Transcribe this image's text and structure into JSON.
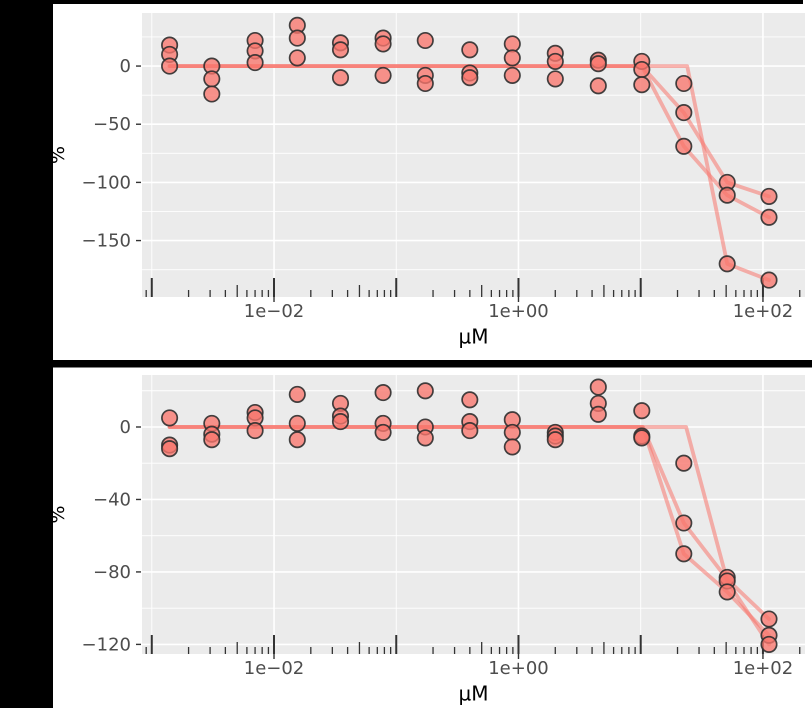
{
  "figure": {
    "description": "Two stacked dose-response plots, percent response vs concentration (log scale), three replicate series per plot",
    "x_axis_title": "µM",
    "y_axis_title": "%"
  },
  "palette": {
    "frame": "#000000",
    "plot_background": "#ffffff",
    "panel_bg": "#ebebeb",
    "grid": "#ffffff",
    "series_color": "#F8766D",
    "point_stroke": "#2f2f2f",
    "tick_label": "#4d4d4d",
    "axis_title": "#000000",
    "tick_mark": "#333333"
  },
  "chart_data": [
    {
      "id": "top",
      "type": "scatter",
      "title": "",
      "xlabel": "µM",
      "ylabel": "%",
      "x_scale": "log10",
      "xlim_log10": [
        -3.08,
        2.344
      ],
      "ylim": [
        -198.5,
        45.6
      ],
      "grid": true,
      "legend": "none",
      "x_breaks": [
        {
          "value": 0.01,
          "label": "1e−02"
        },
        {
          "value": 1,
          "label": "1e+00"
        },
        {
          "value": 100,
          "label": "1e+02"
        }
      ],
      "x_grid_decades": [
        -3,
        -2,
        -1,
        0,
        1,
        2
      ],
      "y_breaks": [
        {
          "value": 0,
          "label": "0"
        },
        {
          "value": -50,
          "label": "−50"
        },
        {
          "value": -100,
          "label": "−100"
        },
        {
          "value": -150,
          "label": "−150"
        }
      ],
      "y_minor": [
        25,
        -25,
        -75,
        -125,
        -175
      ],
      "doses_uM": [
        0.0014,
        0.0031,
        0.007,
        0.0155,
        0.035,
        0.078,
        0.173,
        0.4,
        0.89,
        2.0,
        4.5,
        10.2,
        22.5,
        51,
        112
      ],
      "responses_pct": [
        [
          18,
          10,
          0
        ],
        [
          0,
          -11,
          -24
        ],
        [
          22,
          13,
          3
        ],
        [
          35,
          24,
          7
        ],
        [
          20,
          14,
          -10
        ],
        [
          24,
          19,
          -8
        ],
        [
          22,
          -8,
          -15
        ],
        [
          14,
          -6,
          -10
        ],
        [
          19,
          7,
          -8
        ],
        [
          11,
          4,
          -11
        ],
        [
          5,
          2,
          -17
        ],
        [
          4,
          -3,
          -16
        ],
        [
          -15,
          -40,
          -69
        ],
        [
          -100,
          -111,
          -170
        ],
        [
          -112,
          -130,
          -184
        ]
      ],
      "fit_lines": [
        [
          [
            0.0014,
            0
          ],
          [
            10.2,
            0
          ],
          [
            22.5,
            -40
          ],
          [
            51,
            -100
          ],
          [
            112,
            -112
          ]
        ],
        [
          [
            0.0014,
            0
          ],
          [
            10.2,
            0
          ],
          [
            22.5,
            -69
          ],
          [
            51,
            -111
          ],
          [
            112,
            -130
          ]
        ],
        [
          [
            0.0014,
            0
          ],
          [
            24.0,
            0
          ],
          [
            51,
            -170
          ],
          [
            112,
            -184
          ]
        ]
      ]
    },
    {
      "id": "bottom",
      "type": "scatter",
      "title": "",
      "xlabel": "µM",
      "ylabel": "%",
      "x_scale": "log10",
      "xlim_log10": [
        -3.08,
        2.344
      ],
      "ylim": [
        -125.3,
        28.7
      ],
      "grid": true,
      "legend": "none",
      "x_breaks": [
        {
          "value": 0.01,
          "label": "1e−02"
        },
        {
          "value": 1,
          "label": "1e+00"
        },
        {
          "value": 100,
          "label": "1e+02"
        }
      ],
      "x_grid_decades": [
        -3,
        -2,
        -1,
        0,
        1,
        2
      ],
      "y_breaks": [
        {
          "value": 0,
          "label": "0"
        },
        {
          "value": -40,
          "label": "−40"
        },
        {
          "value": -80,
          "label": "−80"
        },
        {
          "value": -120,
          "label": "−120"
        }
      ],
      "y_minor": [
        20,
        -20,
        -60,
        -100
      ],
      "doses_uM": [
        0.0014,
        0.0031,
        0.007,
        0.0155,
        0.035,
        0.078,
        0.173,
        0.4,
        0.89,
        2.0,
        4.5,
        10.2,
        22.5,
        51,
        112
      ],
      "responses_pct": [
        [
          5,
          -10,
          -12
        ],
        [
          2,
          -4,
          -7
        ],
        [
          8,
          5,
          -2
        ],
        [
          18,
          2,
          -7
        ],
        [
          13,
          6,
          3
        ],
        [
          19,
          2,
          -3
        ],
        [
          20,
          0,
          -6
        ],
        [
          15,
          3,
          -2
        ],
        [
          4,
          -3,
          -11
        ],
        [
          -3,
          -5,
          -7
        ],
        [
          22,
          13,
          7
        ],
        [
          9,
          -5,
          -6
        ],
        [
          -20,
          -53,
          -70
        ],
        [
          -83,
          -85,
          -91
        ],
        [
          -106,
          -115,
          -120
        ]
      ],
      "fit_lines": [
        [
          [
            0.0014,
            0
          ],
          [
            10.4,
            0
          ],
          [
            22.5,
            -53
          ],
          [
            51,
            -84
          ],
          [
            112,
            -106
          ]
        ],
        [
          [
            0.0014,
            0
          ],
          [
            10.4,
            0
          ],
          [
            22.5,
            -70
          ],
          [
            51,
            -91
          ],
          [
            112,
            -115
          ]
        ],
        [
          [
            0.0014,
            0
          ],
          [
            23.5,
            0
          ],
          [
            51,
            -85
          ],
          [
            112,
            -120
          ]
        ]
      ]
    }
  ]
}
